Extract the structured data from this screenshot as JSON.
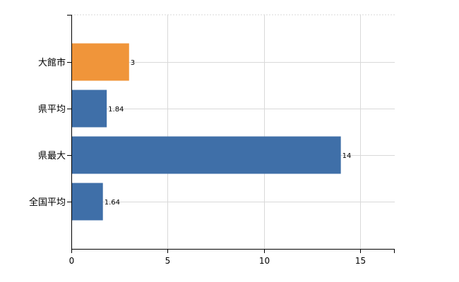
{
  "chart_data": {
    "type": "bar",
    "orientation": "horizontal",
    "title": "",
    "xlabel": "",
    "ylabel": "",
    "categories": [
      "大館市",
      "県平均",
      "県最大",
      "全国平均"
    ],
    "values": [
      3,
      1.84,
      14,
      1.64
    ],
    "value_labels": [
      "3",
      "1.84",
      "14",
      "1.64"
    ],
    "bar_colors": [
      "#f0953a",
      "#3f6fa8",
      "#3f6fa8",
      "#3f6fa8"
    ],
    "xlim": [
      0,
      16.8
    ],
    "xticks": [
      0,
      5,
      10,
      15
    ],
    "xtick_labels": [
      "0",
      "5",
      "10",
      "15"
    ],
    "grid": true,
    "legend": "none"
  }
}
